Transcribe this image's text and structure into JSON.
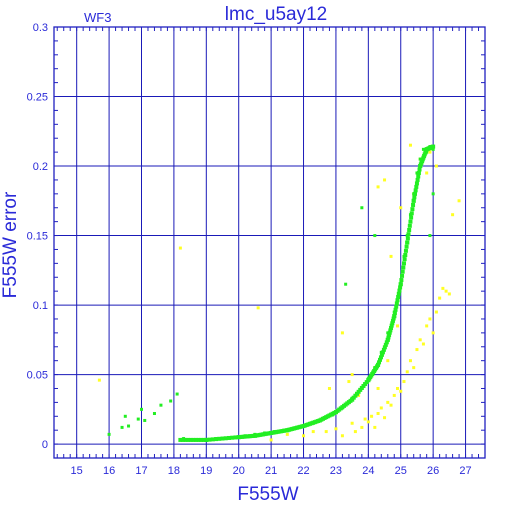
{
  "chart_data": {
    "type": "scatter",
    "title": "lmc_u5ay12",
    "panel_label": "WF3",
    "xlabel": "F555W",
    "ylabel": "F555W error",
    "xlim": [
      14.3,
      27.6
    ],
    "ylim": [
      -0.01,
      0.3
    ],
    "x_ticks": [
      15,
      16,
      17,
      18,
      19,
      20,
      21,
      22,
      23,
      24,
      25,
      26,
      27
    ],
    "y_ticks": [
      0,
      0.05,
      0.1,
      0.15,
      0.2,
      0.25,
      0.3
    ],
    "y_tick_labels": [
      "0",
      "0.05",
      "0.1",
      "0.15",
      "0.2",
      "0.25",
      "0.3"
    ],
    "grid": true,
    "colors": {
      "axes": "#2020c0",
      "text": "#2a2ad8",
      "grid": "#1a1ab8",
      "series_green": "#22ee22",
      "series_yellow": "#ffff22"
    },
    "series": [
      {
        "color": "#ffff22",
        "points": [
          [
            15.7,
            0.046
          ],
          [
            18.2,
            0.141
          ],
          [
            21.0,
            0.003
          ],
          [
            21.5,
            0.007
          ],
          [
            22.0,
            0.006
          ],
          [
            22.3,
            0.009
          ],
          [
            22.7,
            0.009
          ],
          [
            23.0,
            0.011
          ],
          [
            23.2,
            0.006
          ],
          [
            23.5,
            0.015
          ],
          [
            23.6,
            0.009
          ],
          [
            23.8,
            0.012
          ],
          [
            23.9,
            0.018
          ],
          [
            24.0,
            0.016
          ],
          [
            24.1,
            0.02
          ],
          [
            24.2,
            0.012
          ],
          [
            24.3,
            0.022
          ],
          [
            24.4,
            0.026
          ],
          [
            24.5,
            0.019
          ],
          [
            24.6,
            0.03
          ],
          [
            24.7,
            0.028
          ],
          [
            24.8,
            0.035
          ],
          [
            24.9,
            0.04
          ],
          [
            25.0,
            0.038
          ],
          [
            25.1,
            0.045
          ],
          [
            25.2,
            0.052
          ],
          [
            25.3,
            0.06
          ],
          [
            25.4,
            0.055
          ],
          [
            25.5,
            0.068
          ],
          [
            25.6,
            0.075
          ],
          [
            25.7,
            0.072
          ],
          [
            25.8,
            0.085
          ],
          [
            25.9,
            0.09
          ],
          [
            26.0,
            0.08
          ],
          [
            26.1,
            0.095
          ],
          [
            26.2,
            0.105
          ],
          [
            26.3,
            0.112
          ],
          [
            26.4,
            0.11
          ],
          [
            26.5,
            0.108
          ],
          [
            26.8,
            0.175
          ],
          [
            23.7,
            0.035
          ],
          [
            24.2,
            0.055
          ],
          [
            24.5,
            0.07
          ],
          [
            24.6,
            0.06
          ],
          [
            24.3,
            0.04
          ],
          [
            23.4,
            0.045
          ],
          [
            23.5,
            0.05
          ],
          [
            22.8,
            0.04
          ],
          [
            25.4,
            0.18
          ],
          [
            25.6,
            0.205
          ],
          [
            25.8,
            0.195
          ],
          [
            26.1,
            0.2
          ],
          [
            24.7,
            0.135
          ],
          [
            24.5,
            0.19
          ],
          [
            24.3,
            0.185
          ],
          [
            23.2,
            0.08
          ],
          [
            25.0,
            0.17
          ],
          [
            26.6,
            0.165
          ],
          [
            20.6,
            0.098
          ],
          [
            24.9,
            0.085
          ],
          [
            25.3,
            0.215
          ],
          [
            25.9,
            0.21
          ]
        ]
      },
      {
        "color": "#22ee22",
        "points": [
          [
            16.0,
            0.007
          ],
          [
            16.4,
            0.012
          ],
          [
            16.6,
            0.013
          ],
          [
            16.9,
            0.018
          ],
          [
            17.1,
            0.017
          ],
          [
            17.4,
            0.022
          ],
          [
            17.6,
            0.028
          ],
          [
            17.9,
            0.031
          ],
          [
            18.1,
            0.036
          ],
          [
            18.3,
            0.004
          ],
          [
            18.5,
            0.003
          ],
          [
            18.8,
            0.003
          ],
          [
            19.0,
            0.003
          ],
          [
            19.3,
            0.004
          ],
          [
            19.6,
            0.004
          ],
          [
            19.9,
            0.005
          ],
          [
            20.2,
            0.006
          ],
          [
            20.5,
            0.007
          ],
          [
            20.8,
            0.008
          ],
          [
            21.1,
            0.009
          ],
          [
            21.4,
            0.01
          ],
          [
            21.7,
            0.011
          ],
          [
            22.0,
            0.013
          ],
          [
            22.3,
            0.015
          ],
          [
            22.6,
            0.018
          ],
          [
            22.9,
            0.021
          ],
          [
            23.2,
            0.026
          ],
          [
            23.5,
            0.033
          ],
          [
            23.8,
            0.04
          ],
          [
            24.0,
            0.047
          ],
          [
            24.2,
            0.055
          ],
          [
            24.4,
            0.066
          ],
          [
            24.6,
            0.08
          ],
          [
            24.8,
            0.095
          ],
          [
            25.0,
            0.115
          ],
          [
            25.1,
            0.135
          ],
          [
            25.2,
            0.15
          ],
          [
            25.3,
            0.165
          ],
          [
            25.4,
            0.18
          ],
          [
            25.5,
            0.195
          ],
          [
            25.6,
            0.205
          ],
          [
            25.7,
            0.212
          ],
          [
            25.8,
            0.21
          ],
          [
            25.9,
            0.214
          ],
          [
            26.0,
            0.212
          ],
          [
            16.5,
            0.02
          ],
          [
            17.0,
            0.025
          ],
          [
            23.8,
            0.17
          ],
          [
            24.2,
            0.15
          ],
          [
            23.3,
            0.115
          ],
          [
            25.9,
            0.15
          ],
          [
            26.0,
            0.18
          ]
        ]
      }
    ],
    "trend_curve": [
      [
        18.2,
        0.003
      ],
      [
        19.0,
        0.003
      ],
      [
        20.0,
        0.005
      ],
      [
        20.5,
        0.006
      ],
      [
        21.0,
        0.008
      ],
      [
        21.5,
        0.01
      ],
      [
        22.0,
        0.013
      ],
      [
        22.5,
        0.017
      ],
      [
        23.0,
        0.023
      ],
      [
        23.5,
        0.032
      ],
      [
        24.0,
        0.046
      ],
      [
        24.3,
        0.057
      ],
      [
        24.6,
        0.075
      ],
      [
        24.8,
        0.092
      ],
      [
        25.0,
        0.115
      ],
      [
        25.2,
        0.145
      ],
      [
        25.4,
        0.175
      ],
      [
        25.6,
        0.2
      ],
      [
        25.8,
        0.212
      ],
      [
        26.0,
        0.214
      ]
    ]
  }
}
